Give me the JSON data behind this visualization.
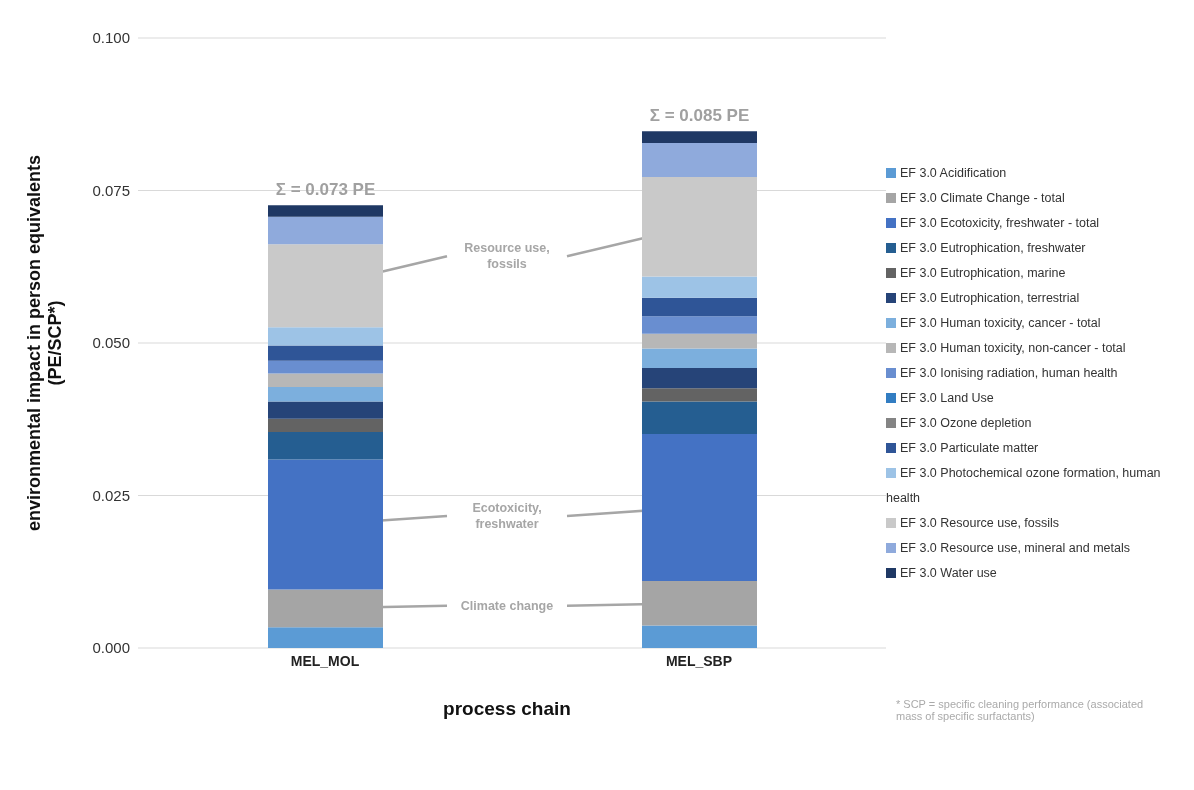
{
  "chart_data": {
    "type": "bar",
    "stacked": true,
    "xlabel": "process chain",
    "ylabel": "environmental impact in person equivalents (PE/SCP*)",
    "categories": [
      "MEL_MOL",
      "MEL_SBP"
    ],
    "ylim": [
      0,
      0.1
    ],
    "yticks": [
      {
        "value": 0,
        "label": "0.000"
      },
      {
        "value": 0.025,
        "label": "0.025"
      },
      {
        "value": 0.05,
        "label": "0.050"
      },
      {
        "value": 0.075,
        "label": "0.075"
      },
      {
        "value": 0.1,
        "label": "0.100"
      }
    ],
    "grid": "y",
    "legend": "right",
    "totals": [
      "Σ = 0.073 PE",
      "Σ = 0.085 PE"
    ],
    "annotations": [
      "Resource use, fossils",
      "Ecotoxicity, freshwater",
      "Climate change",
      "* SCP = specific cleaning performance (associated mass of specific surfactants)"
    ],
    "series": [
      {
        "name": "EF 3.0 Acidification",
        "color": "#5b9bd5",
        "values": [
          0.0034,
          0.0037
        ]
      },
      {
        "name": "EF 3.0 Climate Change - total",
        "color": "#a5a5a5",
        "values": [
          0.0062,
          0.0073
        ]
      },
      {
        "name": "EF 3.0 Ecotoxicity, freshwater - total",
        "color": "#4472c4",
        "values": [
          0.0213,
          0.0241
        ]
      },
      {
        "name": "EF 3.0 Eutrophication, freshwater",
        "color": "#255e91",
        "values": [
          0.0045,
          0.0053
        ]
      },
      {
        "name": "EF 3.0 Eutrophication, marine",
        "color": "#636363",
        "values": [
          0.0022,
          0.0022
        ]
      },
      {
        "name": "EF 3.0 Eutrophication, terrestrial",
        "color": "#264478",
        "values": [
          0.0028,
          0.0033
        ]
      },
      {
        "name": "EF 3.0 Human toxicity, cancer - total",
        "color": "#7cafdd",
        "values": [
          0.0024,
          0.0032
        ]
      },
      {
        "name": "EF 3.0 Human toxicity, non-cancer - total",
        "color": "#b7b7b7",
        "values": [
          0.0022,
          0.0024
        ]
      },
      {
        "name": "EF 3.0 Ionising radiation, human health",
        "color": "#698ed0",
        "values": [
          0.0021,
          0.0029
        ]
      },
      {
        "name": "EF 3.0 Land Use",
        "color": "#327dc2",
        "values": [
          0,
          0
        ]
      },
      {
        "name": "EF 3.0 Ozone depletion",
        "color": "#848484",
        "values": [
          0,
          0
        ]
      },
      {
        "name": "EF 3.0 Particulate matter",
        "color": "#2f5597",
        "values": [
          0.0025,
          0.003
        ]
      },
      {
        "name": "EF 3.0 Photochemical ozone formation, human health",
        "color": "#9dc3e6",
        "values": [
          0.003,
          0.0035
        ]
      },
      {
        "name": "EF 3.0 Resource use, fossils",
        "color": "#c9c9c9",
        "values": [
          0.0136,
          0.0163
        ]
      },
      {
        "name": "EF 3.0 Resource use, mineral and metals",
        "color": "#8faadc",
        "values": [
          0.0045,
          0.0056
        ]
      },
      {
        "name": "EF 3.0 Water use",
        "color": "#1f3864",
        "values": [
          0.0019,
          0.0019
        ]
      }
    ]
  }
}
